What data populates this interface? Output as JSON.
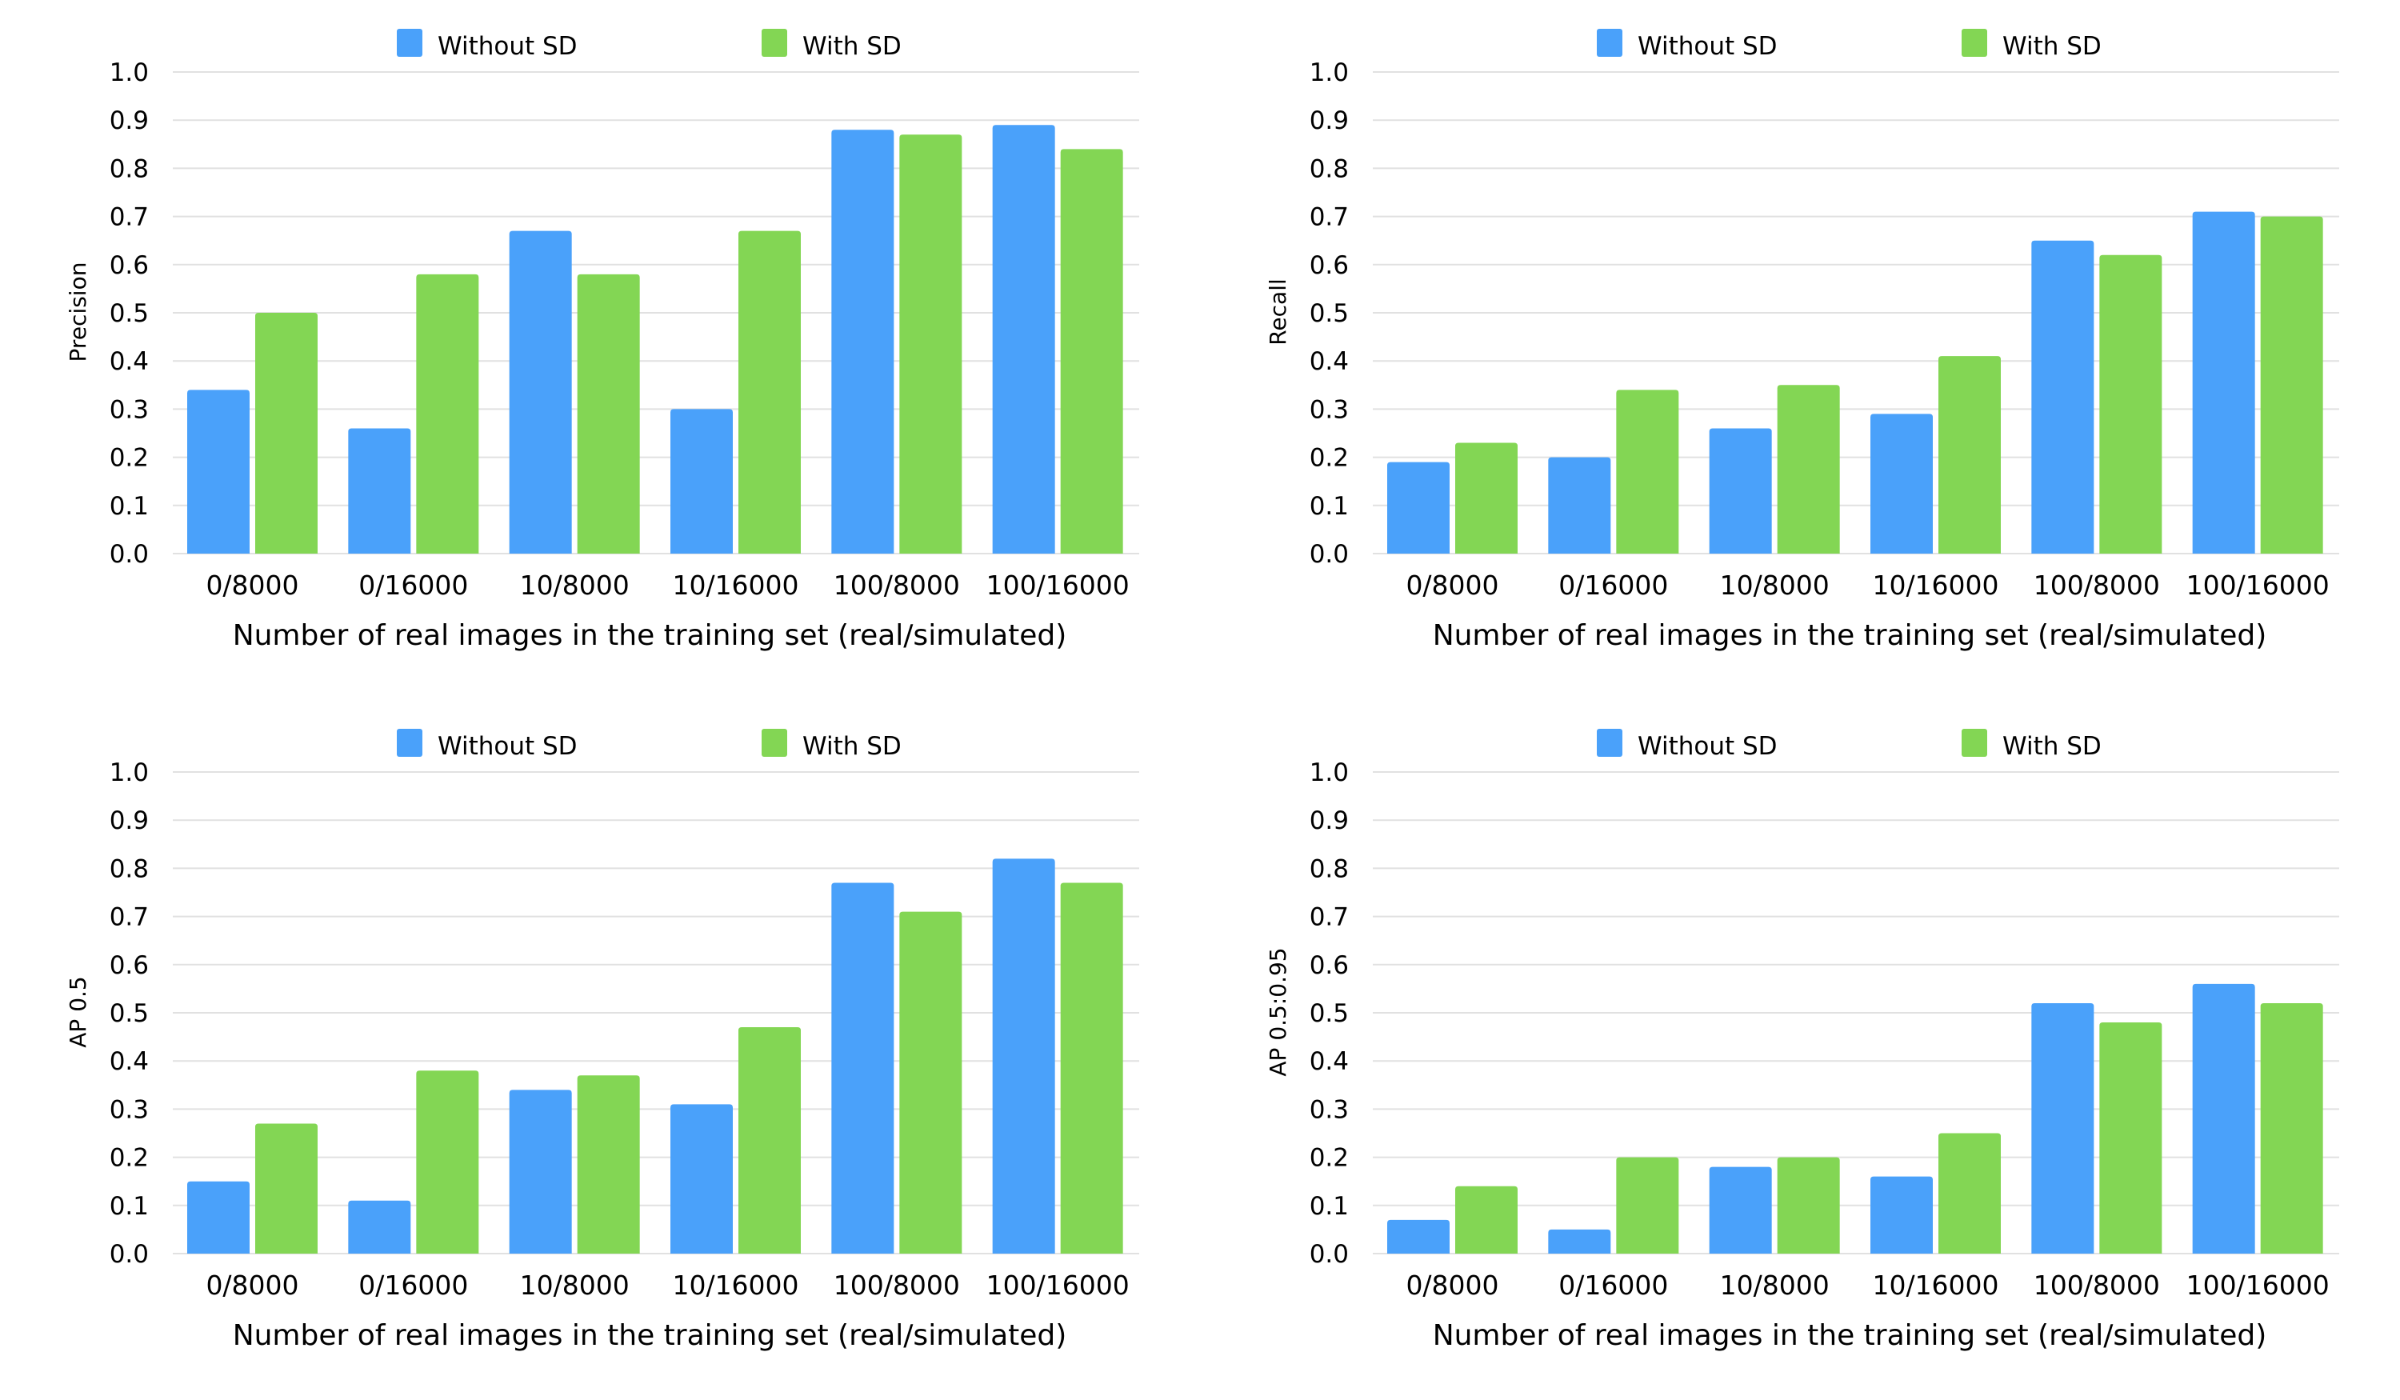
{
  "colors": {
    "without_sd": "#4aa1fa",
    "with_sd": "#83d654"
  },
  "chart_data": [
    {
      "type": "bar",
      "title": "",
      "xlabel": "Number of real images in the training set (real/simulated)",
      "ylabel": "Precision",
      "ylim": [
        0,
        1
      ],
      "yticks": [
        "0.0",
        "0.1",
        "0.2",
        "0.3",
        "0.4",
        "0.5",
        "0.6",
        "0.7",
        "0.8",
        "0.9",
        "1.0"
      ],
      "legend_position": "top",
      "grid": true,
      "categories": [
        "0/8000",
        "0/16000",
        "10/8000",
        "10/16000",
        "100/8000",
        "100/16000"
      ],
      "series": [
        {
          "name": "Without SD",
          "values": [
            0.34,
            0.26,
            0.67,
            0.3,
            0.88,
            0.89
          ]
        },
        {
          "name": "With SD",
          "values": [
            0.5,
            0.58,
            0.58,
            0.67,
            0.87,
            0.84
          ]
        }
      ]
    },
    {
      "type": "bar",
      "title": "",
      "xlabel": "Number of real images in the training set (real/simulated)",
      "ylabel": "Recall",
      "ylim": [
        0,
        1
      ],
      "yticks": [
        "0.0",
        "0.1",
        "0.2",
        "0.3",
        "0.4",
        "0.5",
        "0.6",
        "0.7",
        "0.8",
        "0.9",
        "1.0"
      ],
      "legend_position": "top",
      "grid": true,
      "categories": [
        "0/8000",
        "0/16000",
        "10/8000",
        "10/16000",
        "100/8000",
        "100/16000"
      ],
      "series": [
        {
          "name": "Without SD",
          "values": [
            0.19,
            0.2,
            0.26,
            0.29,
            0.65,
            0.71
          ]
        },
        {
          "name": "With SD",
          "values": [
            0.23,
            0.34,
            0.35,
            0.41,
            0.62,
            0.7
          ]
        }
      ]
    },
    {
      "type": "bar",
      "title": "",
      "xlabel": "Number of real images in the training set (real/simulated)",
      "ylabel": "AP 0.5",
      "ylim": [
        0,
        1
      ],
      "yticks": [
        "0.0",
        "0.1",
        "0.2",
        "0.3",
        "0.4",
        "0.5",
        "0.6",
        "0.7",
        "0.8",
        "0.9",
        "1.0"
      ],
      "legend_position": "top",
      "grid": true,
      "categories": [
        "0/8000",
        "0/16000",
        "10/8000",
        "10/16000",
        "100/8000",
        "100/16000"
      ],
      "series": [
        {
          "name": "Without SD",
          "values": [
            0.15,
            0.11,
            0.34,
            0.31,
            0.77,
            0.82
          ]
        },
        {
          "name": "With SD",
          "values": [
            0.27,
            0.38,
            0.37,
            0.47,
            0.71,
            0.77
          ]
        }
      ]
    },
    {
      "type": "bar",
      "title": "",
      "xlabel": "Number of real images in the training set (real/simulated)",
      "ylabel": "AP 0.5:0.95",
      "ylim": [
        0,
        1
      ],
      "yticks": [
        "0.0",
        "0.1",
        "0.2",
        "0.3",
        "0.4",
        "0.5",
        "0.6",
        "0.7",
        "0.8",
        "0.9",
        "1.0"
      ],
      "legend_position": "top",
      "grid": true,
      "categories": [
        "0/8000",
        "0/16000",
        "10/8000",
        "10/16000",
        "100/8000",
        "100/16000"
      ],
      "series": [
        {
          "name": "Without SD",
          "values": [
            0.07,
            0.05,
            0.18,
            0.16,
            0.52,
            0.56
          ]
        },
        {
          "name": "With SD",
          "values": [
            0.14,
            0.2,
            0.2,
            0.25,
            0.48,
            0.52
          ]
        }
      ]
    }
  ]
}
